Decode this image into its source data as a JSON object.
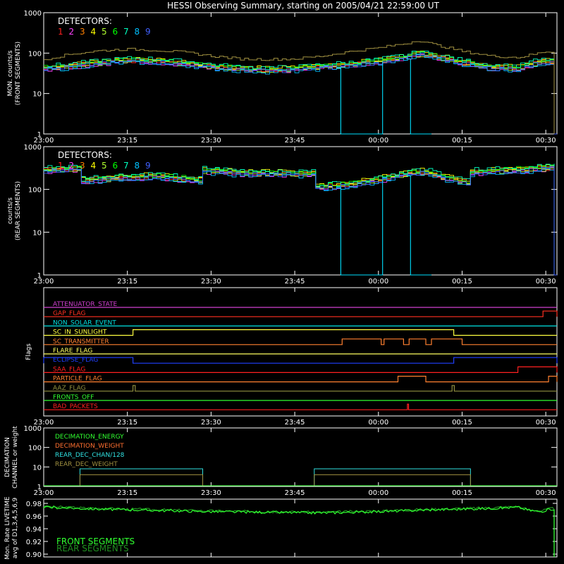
{
  "chart_data": {
    "type": "line",
    "title": "HESSI Observing Summary, starting on 2005/04/21 22:59:00 UT",
    "x_tick_labels": [
      "23:00",
      "23:15",
      "23:30",
      "23:45",
      "00:00",
      "00:15",
      "00:30"
    ],
    "x_range_minutes": [
      0,
      92
    ],
    "x_tick_minutes": [
      0,
      15,
      30,
      45,
      60,
      75,
      90
    ],
    "detector_label": "DETECTORS:",
    "detectors": [
      "1",
      "2",
      "3",
      "4",
      "5",
      "6",
      "7",
      "8",
      "9"
    ],
    "detector_colors": [
      "#ff2020",
      "#ff40ff",
      "#ff8000",
      "#ffff00",
      "#b0ff30",
      "#00ff00",
      "#00ffc0",
      "#00c0ff",
      "#4060ff"
    ],
    "panels": [
      {
        "id": "front",
        "ylabel": [
          "MON. counts/s",
          "(FRONT SEGMENTS)"
        ],
        "scale": "log",
        "ylim": [
          1,
          1000
        ],
        "ytick_labels": [
          "1",
          "10",
          "100",
          "1000"
        ],
        "baseline_profile": [
          [
            0,
            42
          ],
          [
            5,
            48
          ],
          [
            10,
            58
          ],
          [
            15,
            65
          ],
          [
            20,
            63
          ],
          [
            25,
            55
          ],
          [
            30,
            46
          ],
          [
            35,
            40
          ],
          [
            40,
            38
          ],
          [
            45,
            40
          ],
          [
            50,
            46
          ],
          [
            55,
            52
          ],
          [
            60,
            62
          ],
          [
            65,
            80
          ],
          [
            67,
            95
          ],
          [
            70,
            80
          ],
          [
            75,
            58
          ],
          [
            80,
            44
          ],
          [
            85,
            42
          ],
          [
            88,
            58
          ],
          [
            90,
            62
          ],
          [
            91.5,
            60
          ]
        ],
        "top_curve_color": "#a09040",
        "top_curve": [
          [
            0,
            70
          ],
          [
            5,
            95
          ],
          [
            10,
            115
          ],
          [
            15,
            125
          ],
          [
            20,
            118
          ],
          [
            25,
            105
          ],
          [
            30,
            85
          ],
          [
            35,
            72
          ],
          [
            40,
            70
          ],
          [
            45,
            72
          ],
          [
            50,
            85
          ],
          [
            55,
            110
          ],
          [
            60,
            135
          ],
          [
            65,
            175
          ],
          [
            67,
            210
          ],
          [
            70,
            160
          ],
          [
            75,
            110
          ],
          [
            80,
            85
          ],
          [
            85,
            78
          ],
          [
            88,
            95
          ],
          [
            90,
            110
          ],
          [
            91.5,
            105
          ]
        ],
        "dropouts": [
          [
            53.0,
            60.5
          ],
          [
            65.5,
            69.5
          ]
        ],
        "end_drop_minute": 91.5
      },
      {
        "id": "rear",
        "ylabel": [
          "counts/s",
          "(REAR SEGMENTS)"
        ],
        "scale": "log",
        "ylim": [
          1,
          1000
        ],
        "ytick_labels": [
          "1",
          "10",
          "100",
          "1000"
        ],
        "baseline_profile": [
          [
            0,
            280
          ],
          [
            6,
            300
          ],
          [
            6.5,
            160
          ],
          [
            15,
            190
          ],
          [
            20,
            200
          ],
          [
            28,
            160
          ],
          [
            28.5,
            270
          ],
          [
            35,
            240
          ],
          [
            48,
            230
          ],
          [
            48.5,
            110
          ],
          [
            55,
            130
          ],
          [
            60,
            170
          ],
          [
            65,
            230
          ],
          [
            68,
            260
          ],
          [
            72,
            180
          ],
          [
            76,
            140
          ],
          [
            76.5,
            250
          ],
          [
            84,
            280
          ],
          [
            90,
            310
          ],
          [
            91.5,
            350
          ]
        ],
        "dropouts": [
          [
            53.0,
            60.5
          ],
          [
            65.5,
            69.5
          ]
        ],
        "end_drop_minute": 91.5
      }
    ],
    "flags": {
      "ylabel": "Flags",
      "items": [
        {
          "name": "ATTENUATOR_STATE",
          "color": "#d040d0",
          "high": []
        },
        {
          "name": "GAP_FLAG",
          "color": "#ff3020",
          "high": [
            [
              89.5,
              92
            ]
          ]
        },
        {
          "name": "NON_SOLAR_EVENT",
          "color": "#00e0e0",
          "high": []
        },
        {
          "name": "SC_IN_SUNLIGHT",
          "color": "#ffff40",
          "high": [
            [
              16,
              73.5
            ]
          ]
        },
        {
          "name": "SC_TRANSMITTER",
          "color": "#ff8030",
          "high": [
            [
              53.5,
              60.5
            ],
            [
              61,
              64.5
            ],
            [
              65.5,
              68.5
            ],
            [
              69.5,
              75
            ]
          ]
        },
        {
          "name": "FLARE_FLAG",
          "color": "#ffff60",
          "high": []
        },
        {
          "name": "ECLIPSE_FLAG",
          "color": "#2040ff",
          "high": [
            [
              0,
              16
            ],
            [
              73.5,
              92
            ]
          ]
        },
        {
          "name": "SAA_FLAG",
          "color": "#ff2020",
          "high": [
            [
              85,
              92
            ]
          ]
        },
        {
          "name": "PARTICLE_FLAG",
          "color": "#ff8030",
          "high": [
            [
              63.5,
              68.5
            ],
            [
              90.5,
              92
            ]
          ]
        },
        {
          "name": "AAZ_FLAG",
          "color": "#909040",
          "high": [
            [
              16,
              16.4
            ],
            [
              73.2,
              73.6
            ]
          ]
        },
        {
          "name": "FRONTS_OFF",
          "color": "#30ff30",
          "high": []
        },
        {
          "name": "BAD_PACKETS",
          "color": "#ff2020",
          "high": [
            [
              65.2,
              65.4
            ]
          ]
        }
      ]
    },
    "decimation": {
      "ylabel": [
        "DECIMATION",
        "CHANNEL or weight"
      ],
      "scale": "log",
      "ylim": [
        1,
        1000
      ],
      "ytick_labels": [
        "1",
        "10",
        "100",
        "1000"
      ],
      "legend": [
        {
          "name": "DECIMATION_ENERGY",
          "color": "#30ff30"
        },
        {
          "name": "DECIMATION_WEIGHT",
          "color": "#ff7030"
        },
        {
          "name": "REAR_DEC_CHAN/128",
          "color": "#30e0e0"
        },
        {
          "name": "REAR_DEC_WEIGHT",
          "color": "#a09040"
        }
      ],
      "blocks": [
        [
          6.5,
          28.5
        ],
        [
          48.5,
          76.5
        ]
      ],
      "rear_dec_chan_value": 8,
      "rear_dec_weight_value": 4
    },
    "livetime": {
      "ylabel": [
        "Mon. Rate LIVETIME",
        "avg of D1,3,4,5,6,9"
      ],
      "ylim": [
        0.9,
        0.98
      ],
      "ytick_labels": [
        "0.90",
        "0.92",
        "0.94",
        "0.96",
        "0.98"
      ],
      "legend": [
        {
          "name": "FRONT SEGMENTS",
          "color": "#30ff30"
        },
        {
          "name": "REAR SEGMENTS",
          "color": "#209020"
        }
      ],
      "profile": [
        [
          0,
          0.975
        ],
        [
          10,
          0.972
        ],
        [
          20,
          0.97
        ],
        [
          30,
          0.968
        ],
        [
          40,
          0.967
        ],
        [
          50,
          0.966
        ],
        [
          60,
          0.968
        ],
        [
          70,
          0.971
        ],
        [
          80,
          0.973
        ],
        [
          85,
          0.975
        ],
        [
          87,
          0.97
        ],
        [
          89,
          0.968
        ],
        [
          91,
          0.972
        ],
        [
          91.5,
          0.972
        ]
      ],
      "end_drop_minute": 91.5
    }
  }
}
